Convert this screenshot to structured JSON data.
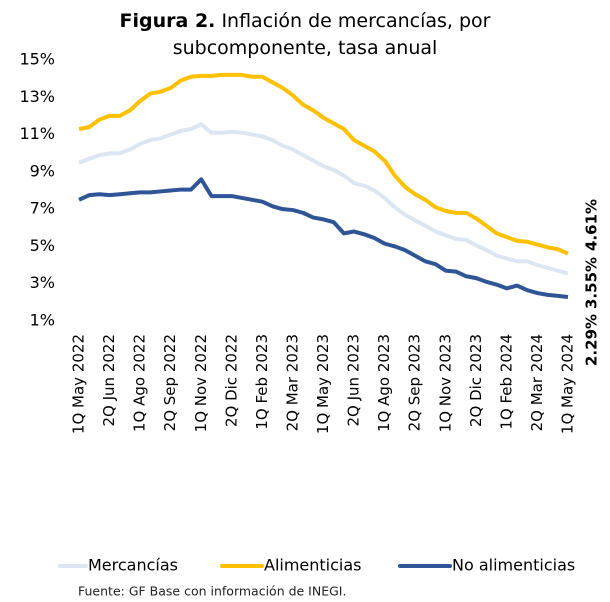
{
  "chart_data": {
    "type": "line",
    "title_label": "Figura 2.",
    "title": "Inflación de mercancías, por subcomponente, tasa anual",
    "source": "Fuente: GF Base con información de INEGI.",
    "categories": [
      "1Q May 2022",
      null,
      null,
      "2Q Jun 2022",
      null,
      null,
      "1Q Ago 2022",
      null,
      null,
      "2Q Sep 2022",
      null,
      null,
      "1Q Nov 2022",
      null,
      null,
      "2Q Dic 2022",
      null,
      null,
      "1Q Feb 2023",
      null,
      null,
      "2Q Mar 2023",
      null,
      null,
      "1Q May 2023",
      null,
      null,
      "2Q Jun 2023",
      null,
      null,
      "1Q Ago 2023",
      null,
      null,
      "2Q Sep 2023",
      null,
      null,
      "1Q Nov 2023",
      null,
      null,
      "2Q Dic 2023",
      null,
      null,
      "1Q Feb 2024",
      null,
      null,
      "2Q Mar 2024",
      null,
      null,
      "1Q May 2024"
    ],
    "ylim": [
      1,
      15
    ],
    "yticks": [
      {
        "value": 1,
        "label": "1%"
      },
      {
        "value": 3,
        "label": "3%"
      },
      {
        "value": 5,
        "label": "5%"
      },
      {
        "value": 7,
        "label": "7%"
      },
      {
        "value": 9,
        "label": "9%"
      },
      {
        "value": 11,
        "label": "11%"
      },
      {
        "value": 13,
        "label": "13%"
      },
      {
        "value": 15,
        "label": "15%"
      }
    ],
    "grid": false,
    "legend": "bottom",
    "series": [
      {
        "name": "Mercancías",
        "color": "#dce6f2",
        "values": [
          9.5,
          9.7,
          9.9,
          10.0,
          10.0,
          10.2,
          10.5,
          10.7,
          10.8,
          11.0,
          11.2,
          11.3,
          11.55,
          11.1,
          11.1,
          11.15,
          11.1,
          11.0,
          10.9,
          10.7,
          10.4,
          10.2,
          9.9,
          9.6,
          9.3,
          9.1,
          8.8,
          8.4,
          8.25,
          8.0,
          7.6,
          7.1,
          6.7,
          6.4,
          6.1,
          5.8,
          5.6,
          5.4,
          5.35,
          5.05,
          4.8,
          4.5,
          4.35,
          4.2,
          4.2,
          4.0,
          3.85,
          3.7,
          3.55
        ],
        "value_labels": [
          null,
          null,
          null,
          null,
          null,
          null,
          null,
          null,
          null,
          null,
          null,
          null,
          null,
          null,
          null,
          null,
          null,
          null,
          null,
          null,
          null,
          null,
          null,
          null,
          null,
          null,
          null,
          null,
          null,
          null,
          null,
          null,
          null,
          null,
          null,
          null,
          null,
          null,
          null,
          null,
          null,
          null,
          null,
          null,
          null,
          null,
          null,
          null,
          "3.55%"
        ]
      },
      {
        "name": "Alimenticias",
        "color": "#ffc000",
        "values": [
          11.3,
          11.4,
          11.8,
          12.0,
          12.0,
          12.3,
          12.8,
          13.2,
          13.3,
          13.5,
          13.9,
          14.1,
          14.15,
          14.15,
          14.2,
          14.2,
          14.2,
          14.1,
          14.1,
          13.8,
          13.5,
          13.1,
          12.6,
          12.3,
          11.9,
          11.6,
          11.3,
          10.7,
          10.4,
          10.1,
          9.6,
          8.8,
          8.2,
          7.8,
          7.5,
          7.1,
          6.9,
          6.8,
          6.8,
          6.5,
          6.1,
          5.7,
          5.5,
          5.3,
          5.25,
          5.1,
          4.95,
          4.85,
          4.61
        ],
        "value_labels": [
          null,
          null,
          null,
          null,
          null,
          null,
          null,
          null,
          null,
          null,
          null,
          null,
          null,
          null,
          null,
          null,
          null,
          null,
          null,
          null,
          null,
          null,
          null,
          null,
          null,
          null,
          null,
          null,
          null,
          null,
          null,
          null,
          null,
          null,
          null,
          null,
          null,
          null,
          null,
          null,
          null,
          null,
          null,
          null,
          null,
          null,
          null,
          null,
          "4.61%"
        ]
      },
      {
        "name": "No alimenticias",
        "color": "#2f5597",
        "values": [
          7.5,
          7.75,
          7.8,
          7.75,
          7.8,
          7.85,
          7.9,
          7.9,
          7.95,
          8.0,
          8.05,
          8.05,
          8.6,
          7.7,
          7.7,
          7.7,
          7.6,
          7.5,
          7.4,
          7.15,
          7.0,
          6.95,
          6.8,
          6.55,
          6.45,
          6.3,
          5.7,
          5.8,
          5.65,
          5.45,
          5.15,
          5.0,
          4.8,
          4.5,
          4.2,
          4.05,
          3.7,
          3.65,
          3.4,
          3.3,
          3.1,
          2.95,
          2.75,
          2.9,
          2.65,
          2.5,
          2.4,
          2.35,
          2.29
        ],
        "value_labels": [
          null,
          null,
          null,
          null,
          null,
          null,
          null,
          null,
          null,
          null,
          null,
          null,
          null,
          null,
          null,
          null,
          null,
          null,
          null,
          null,
          null,
          null,
          null,
          null,
          null,
          null,
          null,
          null,
          null,
          null,
          null,
          null,
          null,
          null,
          null,
          null,
          null,
          null,
          null,
          null,
          null,
          null,
          null,
          null,
          null,
          null,
          null,
          null,
          "2.29%"
        ]
      }
    ]
  }
}
